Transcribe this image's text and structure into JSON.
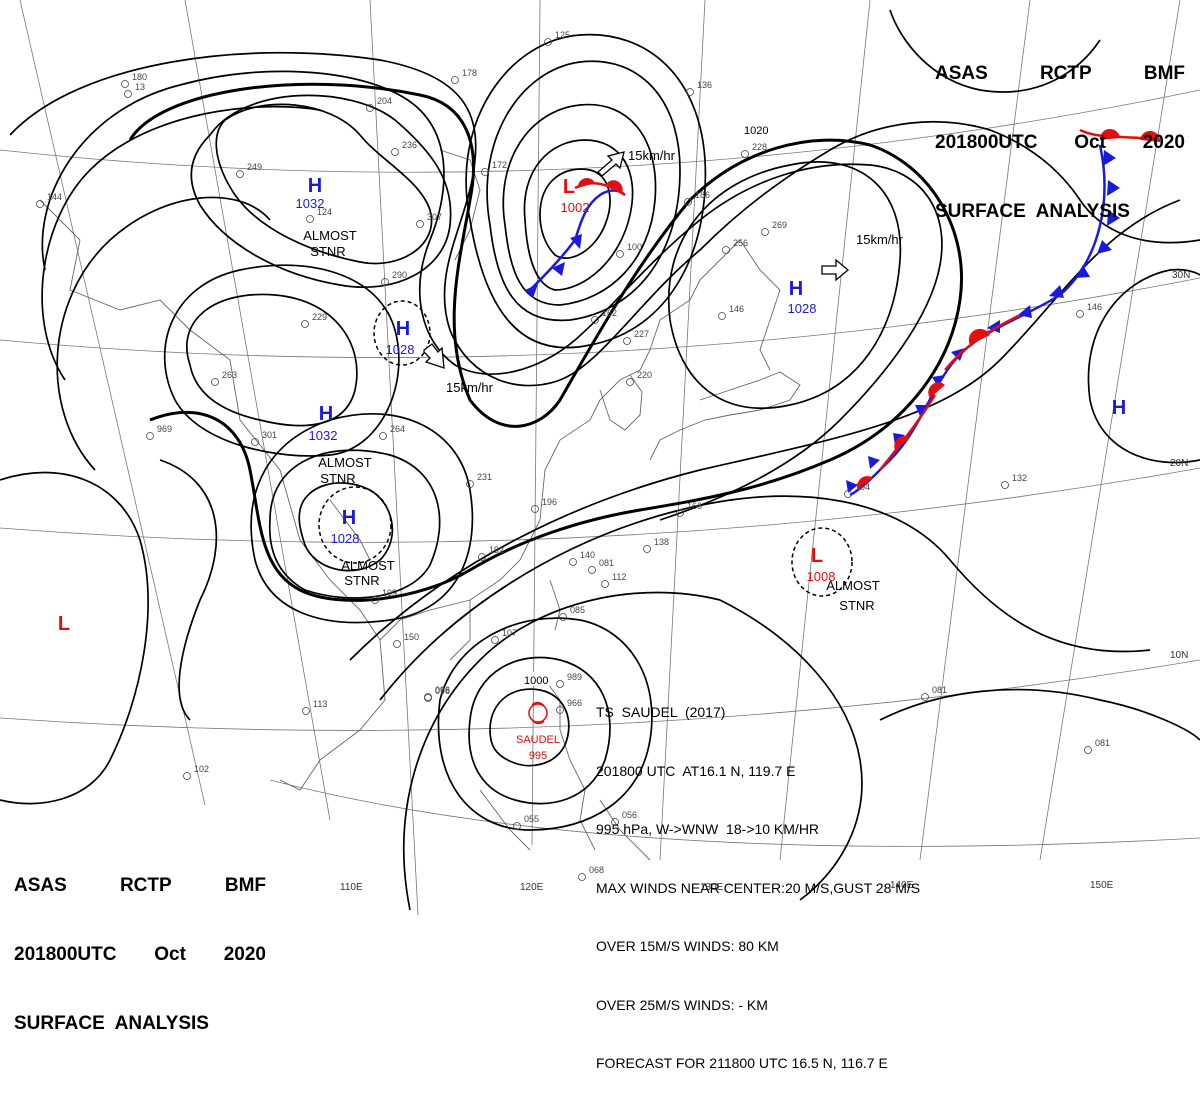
{
  "header": {
    "line1": [
      "ASAS",
      "RCTP",
      "BMF"
    ],
    "line2": [
      "201800UTC",
      "Oct",
      "2020"
    ],
    "line3": "SURFACE  ANALYSIS"
  },
  "lat_labels": [
    "30N",
    "20N",
    "10N"
  ],
  "lon_labels": [
    "110E",
    "120E",
    "130E",
    "140E",
    "150E"
  ],
  "isobar_labels": [
    "1020",
    "1000"
  ],
  "pressure_systems": [
    {
      "type": "H",
      "value": "1032",
      "note": [
        "ALMOST",
        "STNR"
      ],
      "color": "#1a1adb"
    },
    {
      "type": "H",
      "value": "1028",
      "note": [],
      "color": "#1a1adb"
    },
    {
      "type": "H",
      "value": "1032",
      "note": [
        "ALMOST",
        "STNR"
      ],
      "color": "#1a1adb"
    },
    {
      "type": "H",
      "value": "1028",
      "note": [
        "ALMOST",
        "STNR"
      ],
      "color": "#1a1adb"
    },
    {
      "type": "H",
      "value": "1028",
      "note": [],
      "color": "#1a1adb"
    },
    {
      "type": "H",
      "value": "",
      "note": [],
      "color": "#1a1adb"
    },
    {
      "type": "L",
      "value": "1002",
      "note": [],
      "color": "#e01010"
    },
    {
      "type": "L",
      "value": "1008",
      "note": [
        "ALMOST",
        "STNR"
      ],
      "color": "#e01010"
    },
    {
      "type": "L",
      "value": "",
      "note": [],
      "color": "#e01010"
    }
  ],
  "motion_arrows": [
    "15km/hr",
    "15km/hr",
    "15km/hr"
  ],
  "tropical_storm": {
    "name": "SAUDEL",
    "pressure": "995",
    "bulletin": [
      "TS  SAUDEL  (2017)",
      "201800 UTC  AT16.1 N, 119.7 E",
      "995 hPa, W->WNW  18->10 KM/HR",
      "MAX WINDS NEAR CENTER:20 M/S,GUST 28 M/S",
      "OVER 15M/S WINDS: 80 KM",
      "OVER 25M/S WINDS: - KM",
      "FORECAST FOR 211800 UTC 16.5 N, 116.7 E"
    ]
  },
  "station_plots": [
    "125",
    "178",
    "204",
    "236",
    "172",
    "307",
    "290",
    "249",
    "124",
    "144",
    "180",
    "13",
    "229",
    "263",
    "301",
    "969",
    "264",
    "231",
    "196",
    "192",
    "199",
    "150",
    "096",
    "107",
    "989",
    "966",
    "055",
    "056",
    "068",
    "081",
    "102",
    "113",
    "146",
    "132",
    "269",
    "256",
    "228",
    "146",
    "162",
    "220",
    "227",
    "140",
    "112",
    "085",
    "138",
    "166",
    "104",
    "081",
    "081",
    "096",
    "136",
    "186",
    "100"
  ],
  "colors": {
    "isobar": "#000000",
    "high": "#1a1adb",
    "low": "#e01010",
    "cold_front": "#1a1adb",
    "warm_front": "#e01010",
    "coast": "#555555",
    "grid": "#555555"
  }
}
